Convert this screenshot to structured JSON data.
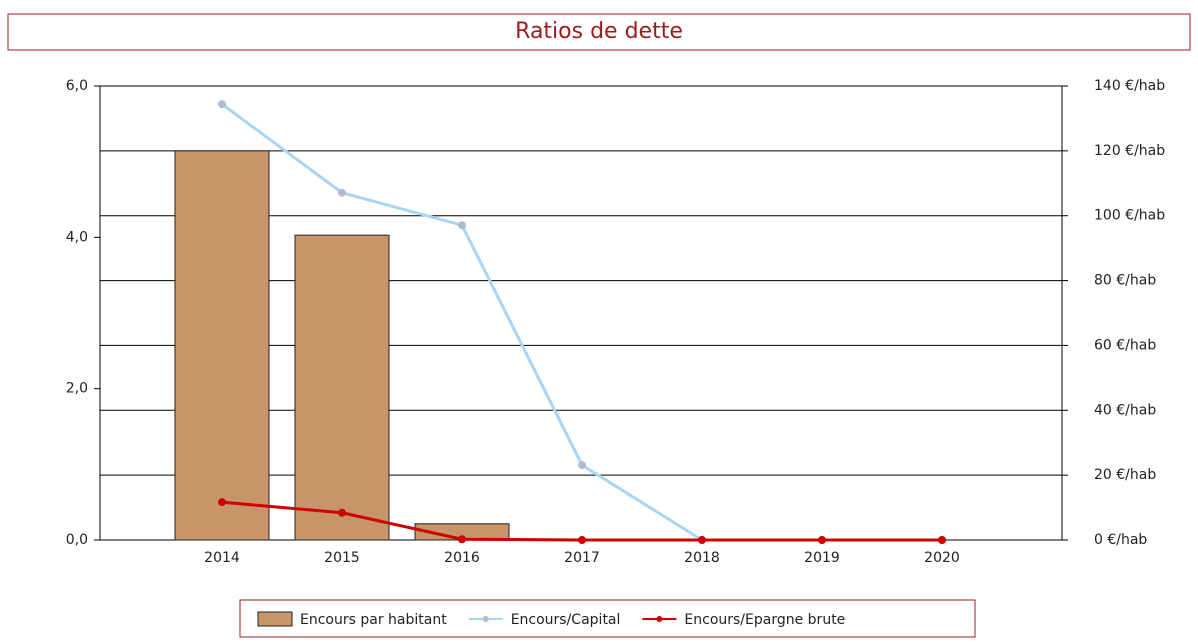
{
  "chart_data": {
    "type": "bar-line",
    "title": "Ratios de dette",
    "categories": [
      "2014",
      "2015",
      "2016",
      "2017",
      "2018",
      "2019",
      "2020"
    ],
    "series": [
      {
        "name": "Encours par habitant",
        "type": "bar",
        "color": "#c8956a",
        "axis": "y2",
        "values": [
          120,
          94,
          5,
          0,
          0,
          0,
          0
        ]
      },
      {
        "name": "Encours/Capital",
        "type": "line",
        "color": "#a9d5f2",
        "values": [
          5.76,
          4.59,
          4.16,
          0.99,
          0,
          0,
          0
        ]
      },
      {
        "name": "Encours/Epargne brute",
        "type": "line",
        "color": "#d00000",
        "values": [
          0.5,
          0.36,
          0.01,
          0,
          0,
          0,
          0
        ]
      }
    ],
    "ylim": [
      0,
      6
    ],
    "yticks": [
      {
        "value": 0,
        "label": "0,0"
      },
      {
        "value": 2,
        "label": "2,0"
      },
      {
        "value": 4,
        "label": "4,0"
      },
      {
        "value": 6,
        "label": "6,0"
      }
    ],
    "y2lim": [
      0,
      140
    ],
    "y2ticks": [
      {
        "value": 0,
        "label": "0 €/hab"
      },
      {
        "value": 20,
        "label": "20 €/hab"
      },
      {
        "value": 40,
        "label": "40 €/hab"
      },
      {
        "value": 60,
        "label": "60 €/hab"
      },
      {
        "value": 80,
        "label": "80 €/hab"
      },
      {
        "value": 100,
        "label": "100 €/hab"
      },
      {
        "value": 120,
        "label": "120 €/hab"
      },
      {
        "value": 140,
        "label": "140 €/hab"
      }
    ],
    "grid": true
  }
}
